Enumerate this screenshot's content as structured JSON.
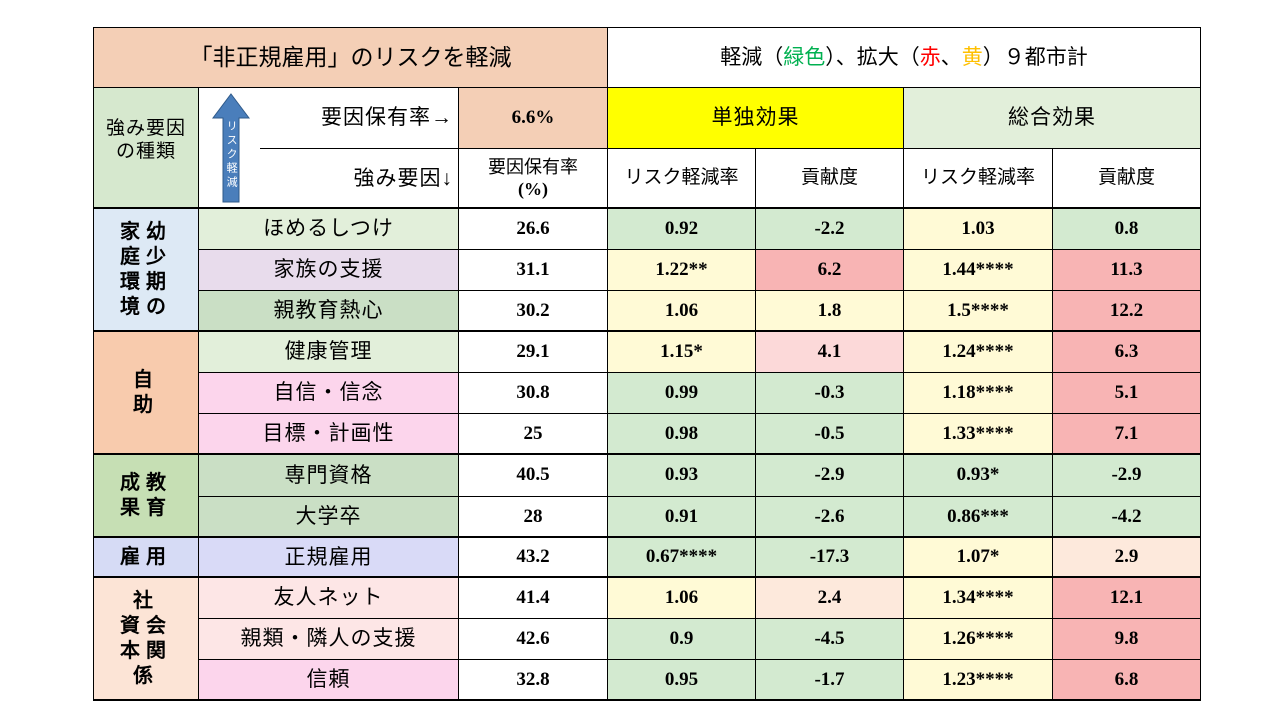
{
  "header": {
    "title": "「非正規雇用」のリスクを軽減",
    "legend": [
      "軽減（",
      "緑色",
      "）、拡大（",
      "赤",
      "、",
      "黄",
      "）９都市計"
    ],
    "group_header": [
      "強み要因",
      "の種類"
    ],
    "arrow_label": "リスク軽減",
    "rate_label": "要因保有率→",
    "factor_label": "強み要因↓",
    "overall_rate": "6.6%",
    "rate_col": [
      "要因保有率",
      "(%)"
    ],
    "single": "単独効果",
    "total": "総合効果",
    "sub": [
      "リスク軽減率",
      "貢献度",
      "リスク軽減率",
      "貢献度"
    ]
  },
  "groups": [
    {
      "label": [
        "家幼",
        "庭少",
        "環期",
        "境の"
      ],
      "rows": [
        {
          "factor": "ほめるしつけ",
          "cells": [
            "26.6",
            "0.92",
            "-2.2",
            "1.03",
            "0.8"
          ]
        },
        {
          "factor": "家族の支援",
          "cells": [
            "31.1",
            "1.22**",
            "6.2",
            "1.44****",
            "11.3"
          ]
        },
        {
          "factor": "親教育熱心",
          "cells": [
            "30.2",
            "1.06",
            "1.8",
            "1.5****",
            "12.2"
          ]
        }
      ]
    },
    {
      "label": [
        "自",
        "助"
      ],
      "rows": [
        {
          "factor": "健康管理",
          "cells": [
            "29.1",
            "1.15*",
            "4.1",
            "1.24****",
            "6.3"
          ]
        },
        {
          "factor": "自信・信念",
          "cells": [
            "30.8",
            "0.99",
            "-0.3",
            "1.18****",
            "5.1"
          ]
        },
        {
          "factor": "目標・計画性",
          "cells": [
            "25",
            "0.98",
            "-0.5",
            "1.33****",
            "7.1"
          ]
        }
      ]
    },
    {
      "label": [
        "成教",
        "果育"
      ],
      "rows": [
        {
          "factor": "専門資格",
          "cells": [
            "40.5",
            "0.93",
            "-2.9",
            "0.93*",
            "-2.9"
          ]
        },
        {
          "factor": "大学卒",
          "cells": [
            "28",
            "0.91",
            "-2.6",
            "0.86***",
            "-4.2"
          ]
        }
      ]
    },
    {
      "label": [
        "雇用"
      ],
      "rows": [
        {
          "factor": "正規雇用",
          "cells": [
            "43.2",
            "0.67****",
            "-17.3",
            "1.07*",
            "2.9"
          ]
        }
      ]
    },
    {
      "label": [
        "社",
        "資会",
        "本関",
        "係"
      ],
      "rows": [
        {
          "factor": "友人ネット",
          "cells": [
            "41.4",
            "1.06",
            "2.4",
            "1.34****",
            "12.1"
          ]
        },
        {
          "factor": "親類・隣人の支援",
          "cells": [
            "42.6",
            "0.9",
            "-4.5",
            "1.26****",
            "9.8"
          ]
        },
        {
          "factor": "信頼",
          "cells": [
            "32.8",
            "0.95",
            "-1.7",
            "1.23****",
            "6.8"
          ]
        }
      ]
    }
  ]
}
